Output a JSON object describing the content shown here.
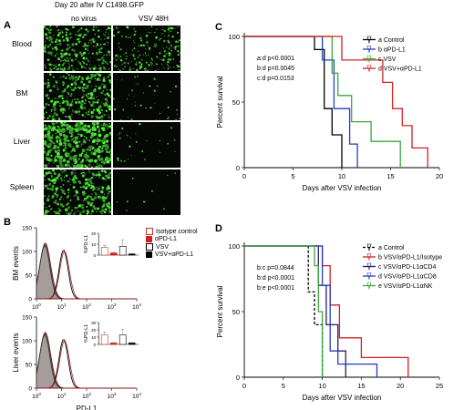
{
  "figure": {
    "panel_a": {
      "letter": "A",
      "title": "Day 20 after IV C1498.GFP",
      "columns": [
        "no virus",
        "VSV 48H"
      ],
      "rows": [
        "Blood",
        "BM",
        "Liver",
        "Spleen"
      ]
    },
    "panel_b": {
      "letter": "B",
      "legend": [
        "Isotype control",
        "αPD-L1",
        "VSV",
        "VSV+αPD-L1"
      ]
    },
    "panel_c": {
      "letter": "C"
    },
    "panel_d": {
      "letter": "D"
    }
  },
  "chart_data": [
    {
      "id": "B-top",
      "type": "area",
      "ylabel": "BM events",
      "xlabel": "",
      "xscale": "log",
      "xticks": [
        "10^0",
        "10^1",
        "10^2",
        "10^3",
        "10^4"
      ],
      "yticks": [
        0,
        50,
        100,
        150
      ],
      "ylim": [
        0,
        150
      ],
      "inset": {
        "ylabel": "%PD-L1",
        "yticks": [
          0,
          10,
          20
        ],
        "values": [
          7,
          2,
          8,
          1
        ],
        "errors": [
          2,
          0.5,
          6,
          0.5
        ]
      }
    },
    {
      "id": "B-bottom",
      "type": "area",
      "ylabel": "Liver events",
      "xlabel": "PD-L1",
      "xscale": "log",
      "xticks": [
        "10^0",
        "10^1",
        "10^2",
        "10^3",
        "10^4"
      ],
      "yticks": [
        0,
        50,
        100,
        150
      ],
      "ylim": [
        0,
        150
      ],
      "inset": {
        "ylabel": "%PD-L1",
        "yticks": [
          0,
          10,
          20,
          30
        ],
        "values": [
          13,
          2,
          13,
          2
        ],
        "errors": [
          4,
          0.5,
          8,
          0.5
        ]
      }
    },
    {
      "id": "C",
      "type": "line",
      "xlabel": "Days after VSV infection",
      "ylabel": "Percent survival",
      "xlim": [
        0,
        20
      ],
      "ylim": [
        0,
        100
      ],
      "xticks": [
        0,
        5,
        10,
        15,
        20
      ],
      "yticks": [
        0,
        50,
        100
      ],
      "pvalues": [
        "a:d  p<0.0001",
        "b:d  p=0.0045",
        "c:d  p=0.0153"
      ],
      "series": [
        {
          "name": "a   Control",
          "color": "#000000",
          "dash": false,
          "points": [
            [
              0,
              100
            ],
            [
              7.2,
              100
            ],
            [
              7.2,
              90
            ],
            [
              8.2,
              90
            ],
            [
              8.2,
              45
            ],
            [
              9,
              45
            ],
            [
              9,
              25
            ],
            [
              10,
              25
            ],
            [
              10,
              0
            ]
          ]
        },
        {
          "name": "b   αPD-L1",
          "color": "#1f3fbf",
          "dash": false,
          "points": [
            [
              0,
              100
            ],
            [
              8,
              100
            ],
            [
              8,
              82
            ],
            [
              9.2,
              82
            ],
            [
              9.2,
              45
            ],
            [
              10.8,
              45
            ],
            [
              10.8,
              18
            ],
            [
              11.6,
              18
            ],
            [
              11.6,
              0
            ]
          ]
        },
        {
          "name": "c   VSV",
          "color": "#3aa83a",
          "dash": false,
          "points": [
            [
              0,
              100
            ],
            [
              9,
              100
            ],
            [
              9,
              72
            ],
            [
              9.6,
              72
            ],
            [
              9.6,
              55
            ],
            [
              11,
              55
            ],
            [
              11,
              35
            ],
            [
              13,
              35
            ],
            [
              13,
              20
            ],
            [
              16,
              20
            ],
            [
              16,
              0
            ]
          ]
        },
        {
          "name": "d   VSV+αPD-L1",
          "color": "#d42020",
          "dash": false,
          "points": [
            [
              0,
              100
            ],
            [
              10,
              100
            ],
            [
              10,
              82
            ],
            [
              14.2,
              82
            ],
            [
              14.2,
              65
            ],
            [
              15.2,
              65
            ],
            [
              15.2,
              45
            ],
            [
              16.2,
              45
            ],
            [
              16.2,
              32
            ],
            [
              17.2,
              32
            ],
            [
              17.2,
              15
            ],
            [
              18.8,
              15
            ],
            [
              18.8,
              0
            ]
          ]
        }
      ]
    },
    {
      "id": "D",
      "type": "line",
      "xlabel": "Days after VSV infection",
      "ylabel": "Percent survival",
      "xlim": [
        0,
        25
      ],
      "ylim": [
        0,
        100
      ],
      "xticks": [
        0,
        5,
        10,
        15,
        20,
        25
      ],
      "yticks": [
        0,
        50,
        100
      ],
      "pvalues": [
        "b:c  p=0.0844",
        "b:d  p<0.0001",
        "b:e  p<0.0001"
      ],
      "series": [
        {
          "name": "a  Control",
          "color": "#000000",
          "dash": true,
          "points": [
            [
              0,
              100
            ],
            [
              8.2,
              100
            ],
            [
              8.2,
              65
            ],
            [
              9,
              65
            ],
            [
              9,
              40
            ],
            [
              10,
              40
            ],
            [
              10,
              0
            ]
          ]
        },
        {
          "name": "b  VSV/αPD-L1/Isotype",
          "color": "#d42020",
          "dash": false,
          "points": [
            [
              0,
              100
            ],
            [
              10,
              100
            ],
            [
              10,
              85
            ],
            [
              11,
              85
            ],
            [
              11,
              55
            ],
            [
              12.2,
              55
            ],
            [
              12.2,
              30
            ],
            [
              15,
              30
            ],
            [
              15,
              15
            ],
            [
              21,
              15
            ],
            [
              21,
              0
            ]
          ]
        },
        {
          "name": "c  VSV/αPD-L1αCD4",
          "color": "#2d1b6e",
          "dash": false,
          "points": [
            [
              0,
              100
            ],
            [
              9.5,
              100
            ],
            [
              9.5,
              70
            ],
            [
              10.5,
              70
            ],
            [
              10.5,
              40
            ],
            [
              12,
              40
            ],
            [
              12,
              20
            ],
            [
              13,
              20
            ],
            [
              13,
              0
            ]
          ]
        },
        {
          "name": "d  VSV/αPD-L1αCD8",
          "color": "#1f3fbf",
          "dash": false,
          "points": [
            [
              0,
              100
            ],
            [
              10,
              100
            ],
            [
              10,
              70
            ],
            [
              11,
              70
            ],
            [
              11,
              20
            ],
            [
              12,
              20
            ],
            [
              12,
              10
            ],
            [
              17,
              10
            ],
            [
              17,
              0
            ]
          ]
        },
        {
          "name": "e  VSV/αPD-L1αNK",
          "color": "#3aa83a",
          "dash": false,
          "points": [
            [
              0,
              100
            ],
            [
              9,
              100
            ],
            [
              9,
              85
            ],
            [
              9.5,
              85
            ],
            [
              9.5,
              50
            ],
            [
              10,
              50
            ],
            [
              10,
              0
            ]
          ]
        }
      ]
    }
  ]
}
